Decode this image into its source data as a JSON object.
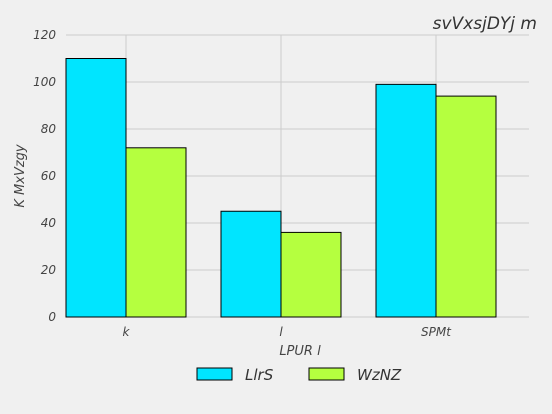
{
  "chart_data": {
    "type": "bar",
    "title": "svVxsjDYj m",
    "xlabel": "LPUR l",
    "ylabel": "K MxVzgy",
    "categories": [
      "k",
      "l",
      "SPMt"
    ],
    "series": [
      {
        "name": "LlrS",
        "values": [
          110,
          45,
          99
        ],
        "color": "#00e5ff"
      },
      {
        "name": "WzNZ",
        "values": [
          72,
          36,
          94
        ],
        "color": "#b5ff3f"
      }
    ],
    "ylim": [
      0,
      120
    ],
    "yticks": [
      0,
      20,
      40,
      60,
      80,
      100,
      120
    ],
    "grid": true,
    "legend_position": "bottom-center"
  }
}
